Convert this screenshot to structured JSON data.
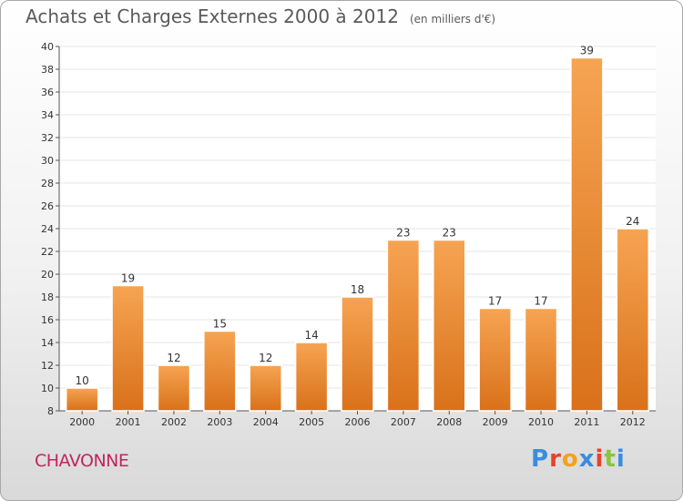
{
  "header": {
    "title": "Achats et Charges Externes 2000 à 2012",
    "subtitle": "(en milliers d'€)"
  },
  "footer": {
    "commune": "CHAVONNE",
    "logo_text": "Proxiti",
    "logo_colors": [
      "#3a8dde",
      "#e8412c",
      "#f3a21a",
      "#3a8dde",
      "#e8412c",
      "#8bc53f",
      "#3a8dde"
    ]
  },
  "colors": {
    "bar_light": "#f6a452",
    "bar_dark": "#d9711a",
    "grid": "#e6e6e6",
    "commune": "#c0265e"
  },
  "chart_data": {
    "type": "bar",
    "title": "Achats et Charges Externes 2000 à 2012",
    "subtitle": "(en milliers d'€)",
    "xlabel": "",
    "ylabel": "",
    "categories": [
      "2000",
      "2001",
      "2002",
      "2003",
      "2004",
      "2005",
      "2006",
      "2007",
      "2008",
      "2009",
      "2010",
      "2011",
      "2012"
    ],
    "values": [
      10,
      19,
      12,
      15,
      12,
      14,
      18,
      23,
      23,
      17,
      17,
      39,
      24
    ],
    "ylim": [
      8,
      40
    ],
    "yticks": [
      8,
      10,
      12,
      14,
      16,
      18,
      20,
      22,
      24,
      26,
      28,
      30,
      32,
      34,
      36,
      38,
      40
    ],
    "grid": true,
    "data_labels": true
  }
}
